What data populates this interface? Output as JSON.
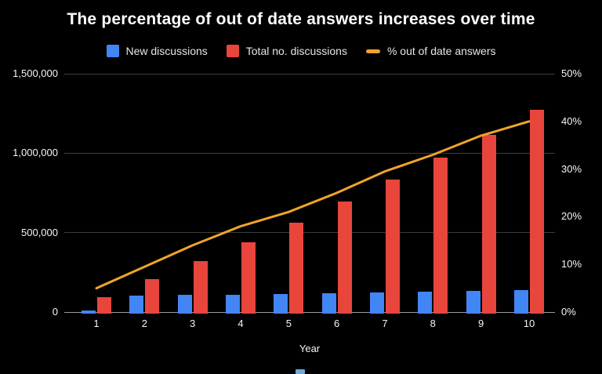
{
  "title": "The percentage of out of date answers increases over time",
  "colors": {
    "background": "#000000",
    "new_discussions_blue": "#4285f4",
    "total_discussions_red": "#e8453c",
    "out_of_date_orange": "#f0a42c",
    "gridline": "#3d3d3d",
    "axis_baseline": "#9b9b9b",
    "text": "#f5f5f5",
    "partial_bottom_swatch_blue": "#6fa8dc"
  },
  "chart_data": {
    "type": "bar",
    "title": "The percentage of out of date answers increases over time",
    "xlabel": "Year",
    "categories": [
      "1",
      "2",
      "3",
      "4",
      "5",
      "6",
      "7",
      "8",
      "9",
      "10"
    ],
    "legend_position": "top",
    "grid": "horizontal",
    "series": [
      {
        "name": "New discussions",
        "type": "bar",
        "axis": "left",
        "color": "#4285f4",
        "values": [
          10000,
          105000,
          108000,
          110000,
          113000,
          117000,
          122000,
          126000,
          133000,
          140000
        ]
      },
      {
        "name": "Total no. discussions",
        "type": "bar",
        "axis": "left",
        "color": "#e8453c",
        "values": [
          95000,
          205000,
          320000,
          440000,
          565000,
          695000,
          835000,
          970000,
          1115000,
          1275000
        ]
      },
      {
        "name": "% out of date answers",
        "type": "line",
        "axis": "right",
        "color": "#f0a42c",
        "values": [
          5,
          9.5,
          14,
          18,
          21,
          25,
          29.5,
          33,
          37,
          40
        ]
      }
    ],
    "left_axis": {
      "max": 1500000,
      "min": 0,
      "ticks": [
        {
          "v": 0,
          "label": "0"
        },
        {
          "v": 500000,
          "label": "500,000"
        },
        {
          "v": 1000000,
          "label": "1,000,000"
        },
        {
          "v": 1500000,
          "label": "1,500,000"
        }
      ]
    },
    "right_axis": {
      "max": 50,
      "min": 0,
      "unit": "%",
      "ticks": [
        {
          "v": 0,
          "label": "0%"
        },
        {
          "v": 10,
          "label": "10%"
        },
        {
          "v": 20,
          "label": "20%"
        },
        {
          "v": 30,
          "label": "30%"
        },
        {
          "v": 40,
          "label": "40%"
        },
        {
          "v": 50,
          "label": "50%"
        }
      ]
    }
  }
}
